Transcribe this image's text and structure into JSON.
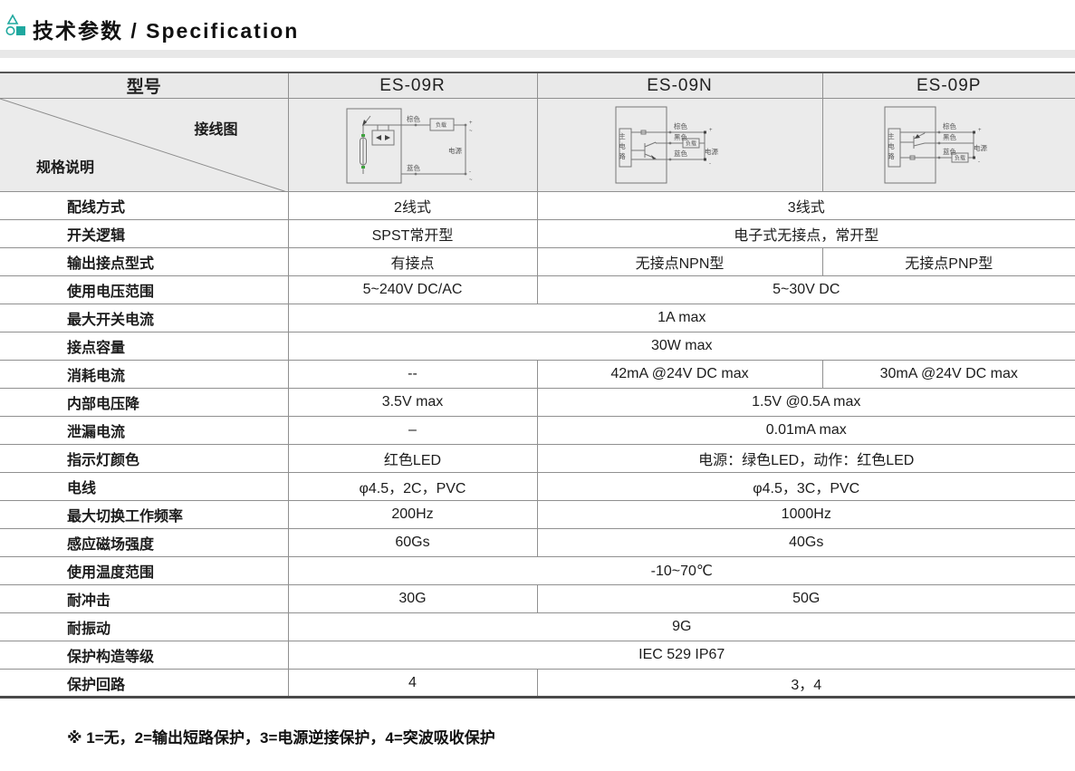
{
  "page": {
    "title": "技术参数 / Specification",
    "accent_color": "#1fa89f",
    "footnote": "※ 1=无，2=输出短路保护，3=电源逆接保护，4=突波吸收保护"
  },
  "table": {
    "header": {
      "model_label": "型号",
      "models": [
        "ES-09R",
        "ES-09N",
        "ES-09P"
      ]
    },
    "corner": {
      "top_right": "接线图",
      "bottom_left": "规格说明"
    },
    "wiring": {
      "r": {
        "brown": "棕色",
        "blue": "蓝色",
        "load": "负载",
        "power": "电源",
        "plus": "+",
        "minus": "-",
        "ac": "~"
      },
      "n": {
        "main": [
          "主",
          "电",
          "路"
        ],
        "brown": "棕色",
        "black": "黑色",
        "blue": "蓝色",
        "load": "负载",
        "power": "电源",
        "plus": "+",
        "minus": "-"
      },
      "p": {
        "main": [
          "主",
          "电",
          "路"
        ],
        "brown": "棕色",
        "black": "黑色",
        "blue": "蓝色",
        "load": "负载",
        "power": "电源",
        "plus": "+",
        "minus": "-"
      }
    },
    "rows": [
      {
        "label": "配线方式",
        "cells": [
          {
            "span": 1,
            "text": "2线式"
          },
          {
            "span": 2,
            "text": "3线式"
          }
        ]
      },
      {
        "label": "开关逻辑",
        "cells": [
          {
            "span": 1,
            "text": "SPST常开型"
          },
          {
            "span": 2,
            "text": "电子式无接点，常开型"
          }
        ]
      },
      {
        "label": "输出接点型式",
        "cells": [
          {
            "span": 1,
            "text": "有接点"
          },
          {
            "span": 1,
            "text": "无接点NPN型"
          },
          {
            "span": 1,
            "text": "无接点PNP型"
          }
        ]
      },
      {
        "label": "使用电压范围",
        "cells": [
          {
            "span": 1,
            "text": "5~240V DC/AC"
          },
          {
            "span": 2,
            "text": "5~30V DC"
          }
        ]
      },
      {
        "label": "最大开关电流",
        "cells": [
          {
            "span": 3,
            "text": "1A max"
          }
        ]
      },
      {
        "label": "接点容量",
        "cells": [
          {
            "span": 3,
            "text": "30W max"
          }
        ]
      },
      {
        "label": "消耗电流",
        "cells": [
          {
            "span": 1,
            "text": "--"
          },
          {
            "span": 1,
            "text": "42mA @24V DC max"
          },
          {
            "span": 1,
            "text": "30mA @24V DC max"
          }
        ]
      },
      {
        "label": "内部电压降",
        "cells": [
          {
            "span": 1,
            "text": "3.5V max"
          },
          {
            "span": 2,
            "text": "1.5V @0.5A max"
          }
        ]
      },
      {
        "label": "泄漏电流",
        "cells": [
          {
            "span": 1,
            "text": "–"
          },
          {
            "span": 2,
            "text": "0.01mA max"
          }
        ]
      },
      {
        "label": "指示灯颜色",
        "cells": [
          {
            "span": 1,
            "text": "红色LED"
          },
          {
            "span": 2,
            "text": "电源：绿色LED，动作：红色LED"
          }
        ]
      },
      {
        "label": "电线",
        "cells": [
          {
            "span": 1,
            "text": "φ4.5，2C，PVC"
          },
          {
            "span": 2,
            "text": "φ4.5，3C，PVC"
          }
        ]
      },
      {
        "label": "最大切换工作频率",
        "cells": [
          {
            "span": 1,
            "text": "200Hz"
          },
          {
            "span": 2,
            "text": "1000Hz"
          }
        ]
      },
      {
        "label": "感应磁场强度",
        "cells": [
          {
            "span": 1,
            "text": "60Gs"
          },
          {
            "span": 2,
            "text": "40Gs"
          }
        ]
      },
      {
        "label": "使用温度范围",
        "cells": [
          {
            "span": 3,
            "text": "-10~70℃"
          }
        ]
      },
      {
        "label": "耐冲击",
        "cells": [
          {
            "span": 1,
            "text": "30G"
          },
          {
            "span": 2,
            "text": "50G"
          }
        ]
      },
      {
        "label": "耐振动",
        "cells": [
          {
            "span": 3,
            "text": "9G"
          }
        ]
      },
      {
        "label": "保护构造等级",
        "cells": [
          {
            "span": 3,
            "text": "IEC 529 IP67"
          }
        ]
      },
      {
        "label": "保护回路",
        "cells": [
          {
            "span": 1,
            "text": "4"
          },
          {
            "span": 2,
            "text": "3，4"
          }
        ]
      }
    ]
  }
}
